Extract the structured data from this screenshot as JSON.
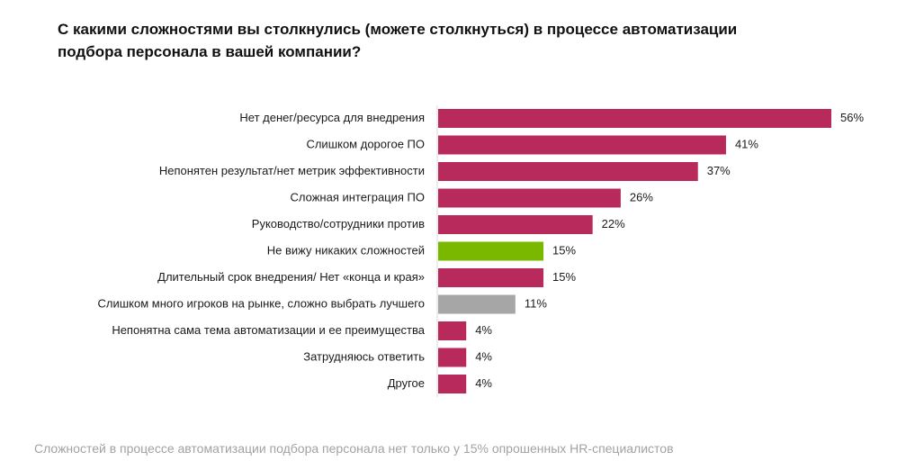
{
  "title": {
    "line1": "С какими сложностями вы столкнулись (можете столкнуться) в процессе автоматизации",
    "line2": "подбора персонала в вашей компании?"
  },
  "footnote": "Сложностей в процессе автоматизации подбора персонала нет только у 15% опрошенных HR-специалистов",
  "colors": {
    "primary": "#b8295c",
    "highlight": "#7ab800",
    "neutral": "#a6a6a6"
  },
  "chart_data": {
    "type": "bar",
    "orientation": "horizontal",
    "categories": [
      "Нет денег/ресурса для внедрения",
      "Слишком дорогое ПО",
      "Непонятен результат/нет метрик эффективности",
      "Сложная интеграция ПО",
      "Руководство/сотрудники против",
      "Не вижу никаких сложностей",
      "Длительный срок внедрения/ Нет «конца и края»",
      "Слишком много игроков на рынке, сложно выбрать лучшего",
      "Непонятна сама тема автоматизации и ее преимущества",
      "Затрудняюсь ответить",
      "Другое"
    ],
    "values": [
      56,
      41,
      37,
      26,
      22,
      15,
      15,
      11,
      4,
      4,
      4
    ],
    "value_labels": [
      "56%",
      "41%",
      "37%",
      "26%",
      "22%",
      "15%",
      "15%",
      "11%",
      "4%",
      "4%",
      "4%"
    ],
    "bar_colors": [
      "primary",
      "primary",
      "primary",
      "primary",
      "primary",
      "highlight",
      "primary",
      "neutral",
      "primary",
      "primary",
      "primary"
    ],
    "xlim": [
      0,
      56
    ],
    "grid": false,
    "legend": "none",
    "unit": "%"
  }
}
